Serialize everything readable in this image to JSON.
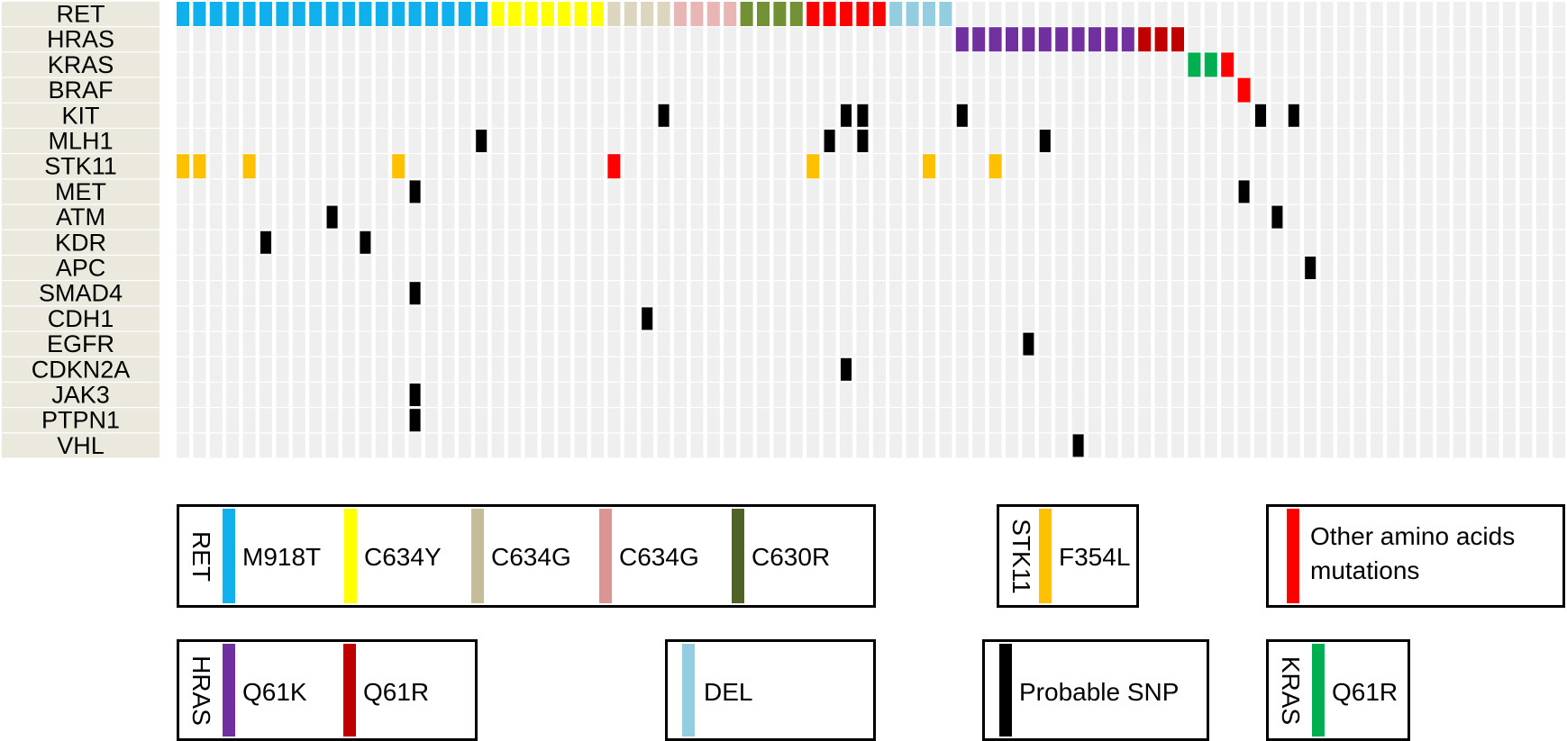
{
  "chart_data": {
    "type": "heatmap",
    "title": "",
    "n_samples": 84,
    "genes": [
      "RET",
      "HRAS",
      "KRAS",
      "BRAF",
      "KIT",
      "MLH1",
      "STK11",
      "MET",
      "ATM",
      "KDR",
      "APC",
      "SMAD4",
      "CDH1",
      "EGFR",
      "CDKN2A",
      "JAK3",
      "PTPN1",
      "VHL"
    ],
    "colors": {
      "empty": "#efefef",
      "M918T": "#10b0ec",
      "C634Y": "#ffff00",
      "C634G_a": "#dcd6c0",
      "C634G_b": "#e9b6b6",
      "C630R": "#739035",
      "other": "#ff0000",
      "DEL": "#95cde0",
      "Q61K": "#7030a0",
      "Q61R_HRAS": "#c00000",
      "Q61R_KRAS": "#00b050",
      "F354L": "#ffc000",
      "SNP": "#000000"
    },
    "mutations": [
      {
        "gene": "RET",
        "start": 0,
        "end": 18,
        "type": "M918T"
      },
      {
        "gene": "RET",
        "start": 19,
        "end": 25,
        "type": "C634Y"
      },
      {
        "gene": "RET",
        "start": 26,
        "end": 29,
        "type": "C634G_a"
      },
      {
        "gene": "RET",
        "start": 30,
        "end": 33,
        "type": "C634G_b"
      },
      {
        "gene": "RET",
        "start": 34,
        "end": 37,
        "type": "C630R"
      },
      {
        "gene": "RET",
        "start": 38,
        "end": 42,
        "type": "other"
      },
      {
        "gene": "RET",
        "start": 43,
        "end": 46,
        "type": "DEL"
      },
      {
        "gene": "HRAS",
        "start": 47,
        "end": 57,
        "type": "Q61K"
      },
      {
        "gene": "HRAS",
        "start": 58,
        "end": 60,
        "type": "Q61R_HRAS"
      },
      {
        "gene": "KRAS",
        "start": 61,
        "end": 62,
        "type": "Q61R_KRAS"
      },
      {
        "gene": "KRAS",
        "start": 63,
        "end": 63,
        "type": "other"
      },
      {
        "gene": "BRAF",
        "start": 64,
        "end": 64,
        "type": "other"
      },
      {
        "gene": "KIT",
        "start": 29,
        "end": 29,
        "type": "SNP"
      },
      {
        "gene": "KIT",
        "start": 40,
        "end": 41,
        "type": "SNP"
      },
      {
        "gene": "KIT",
        "start": 47,
        "end": 47,
        "type": "SNP"
      },
      {
        "gene": "KIT",
        "start": 65,
        "end": 65,
        "type": "SNP"
      },
      {
        "gene": "KIT",
        "start": 67,
        "end": 67,
        "type": "SNP"
      },
      {
        "gene": "MLH1",
        "start": 18,
        "end": 18,
        "type": "SNP"
      },
      {
        "gene": "MLH1",
        "start": 39,
        "end": 39,
        "type": "SNP"
      },
      {
        "gene": "MLH1",
        "start": 41,
        "end": 41,
        "type": "SNP"
      },
      {
        "gene": "MLH1",
        "start": 52,
        "end": 52,
        "type": "SNP"
      },
      {
        "gene": "STK11",
        "start": 0,
        "end": 1,
        "type": "F354L"
      },
      {
        "gene": "STK11",
        "start": 4,
        "end": 4,
        "type": "F354L"
      },
      {
        "gene": "STK11",
        "start": 13,
        "end": 13,
        "type": "F354L"
      },
      {
        "gene": "STK11",
        "start": 26,
        "end": 26,
        "type": "other"
      },
      {
        "gene": "STK11",
        "start": 38,
        "end": 38,
        "type": "F354L"
      },
      {
        "gene": "STK11",
        "start": 45,
        "end": 45,
        "type": "F354L"
      },
      {
        "gene": "STK11",
        "start": 49,
        "end": 49,
        "type": "F354L"
      },
      {
        "gene": "MET",
        "start": 14,
        "end": 14,
        "type": "SNP"
      },
      {
        "gene": "MET",
        "start": 64,
        "end": 64,
        "type": "SNP"
      },
      {
        "gene": "ATM",
        "start": 9,
        "end": 9,
        "type": "SNP"
      },
      {
        "gene": "ATM",
        "start": 66,
        "end": 66,
        "type": "SNP"
      },
      {
        "gene": "KDR",
        "start": 5,
        "end": 5,
        "type": "SNP"
      },
      {
        "gene": "KDR",
        "start": 11,
        "end": 11,
        "type": "SNP"
      },
      {
        "gene": "APC",
        "start": 68,
        "end": 68,
        "type": "SNP"
      },
      {
        "gene": "SMAD4",
        "start": 14,
        "end": 14,
        "type": "SNP"
      },
      {
        "gene": "CDH1",
        "start": 28,
        "end": 28,
        "type": "SNP"
      },
      {
        "gene": "EGFR",
        "start": 51,
        "end": 51,
        "type": "SNP"
      },
      {
        "gene": "CDKN2A",
        "start": 40,
        "end": 40,
        "type": "SNP"
      },
      {
        "gene": "JAK3",
        "start": 14,
        "end": 14,
        "type": "SNP"
      },
      {
        "gene": "PTPN1",
        "start": 14,
        "end": 14,
        "type": "SNP"
      },
      {
        "gene": "VHL",
        "start": 54,
        "end": 54,
        "type": "SNP"
      }
    ]
  },
  "legend": {
    "ret": {
      "gene": "RET",
      "items": [
        {
          "label": "M918T",
          "color": "#10b0ec"
        },
        {
          "label": "C634Y",
          "color": "#ffff00"
        },
        {
          "label": "C634G",
          "color": "#c4bd97"
        },
        {
          "label": "C634G",
          "color": "#d99694"
        },
        {
          "label": "C630R",
          "color": "#4f6228"
        }
      ]
    },
    "stk11": {
      "gene": "STK11",
      "label": "F354L",
      "color": "#ffc000"
    },
    "other": {
      "line1": "Other amino acids",
      "line2": "mutations",
      "color": "#ff0000"
    },
    "hras": {
      "gene": "HRAS",
      "items": [
        {
          "label": "Q61K",
          "color": "#7030a0"
        },
        {
          "label": "Q61R",
          "color": "#c00000"
        }
      ]
    },
    "del": {
      "label": "DEL",
      "color": "#95cde0"
    },
    "snp": {
      "label": "Probable SNP",
      "color": "#000000"
    },
    "kras": {
      "gene": "KRAS",
      "label": "Q61R",
      "color": "#00b050"
    }
  }
}
